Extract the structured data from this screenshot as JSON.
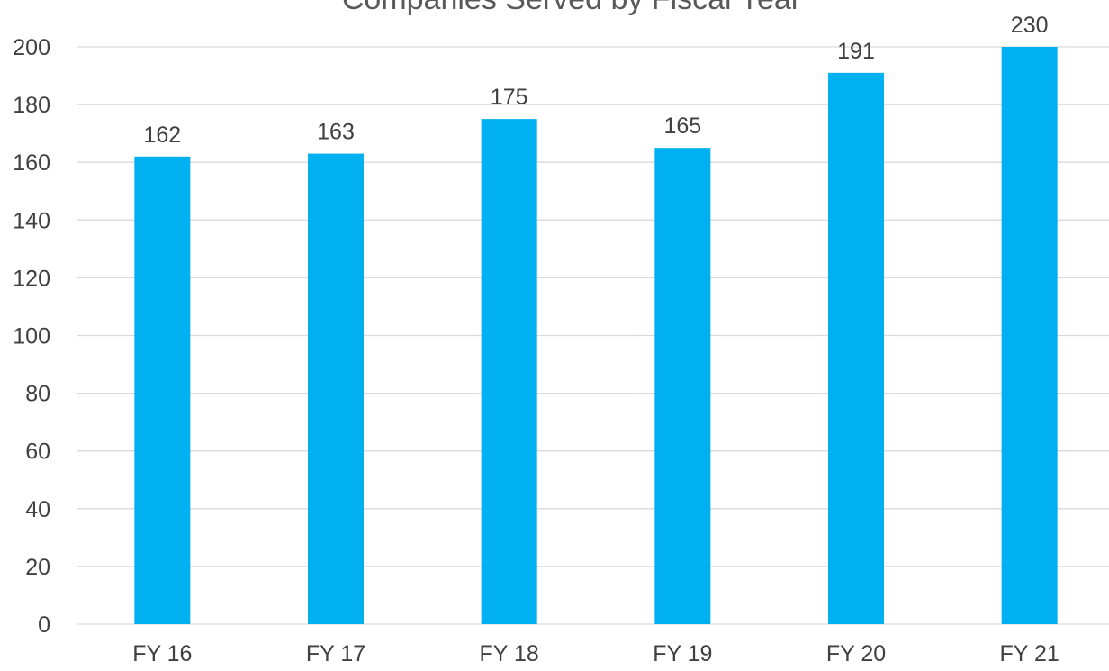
{
  "chart_data": {
    "type": "bar",
    "title": "Companies Served by Fiscal Year",
    "categories": [
      "FY 16",
      "FY 17",
      "FY 18",
      "FY 19",
      "FY 20",
      "FY 21"
    ],
    "values": [
      162,
      163,
      175,
      165,
      191,
      230
    ],
    "data_labels": [
      "162",
      "163",
      "175",
      "165",
      "191",
      "230"
    ],
    "ylim": [
      0,
      200
    ],
    "yticks": [
      0,
      20,
      40,
      60,
      80,
      100,
      120,
      140,
      160,
      180,
      200
    ],
    "xlabel": "",
    "ylabel": "",
    "grid": true,
    "legend": "none",
    "colors": {
      "bar": "#00B0F0",
      "grid": "#D9D9D9",
      "text": "#404040",
      "title": "#595959"
    }
  }
}
